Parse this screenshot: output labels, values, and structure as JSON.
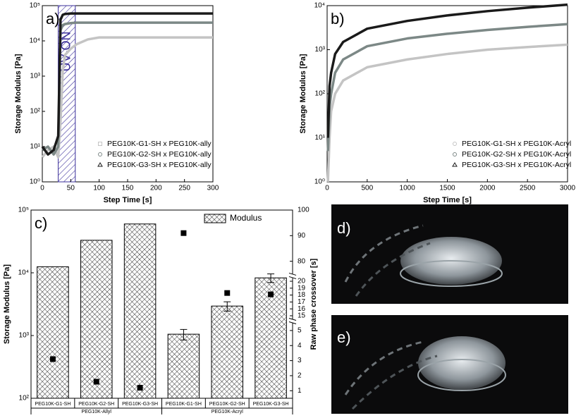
{
  "chart_data": [
    {
      "type": "line",
      "panel_label": "a)",
      "xlabel": "Step Time [s]",
      "ylabel": "Storage Modulus [Pa]",
      "x": [
        0,
        10,
        20,
        28,
        32,
        36,
        40,
        50,
        60,
        80,
        100,
        150,
        200,
        250,
        300
      ],
      "xlim": [
        0,
        300
      ],
      "xticks": [
        0,
        50,
        100,
        150,
        200,
        250,
        300
      ],
      "ylim": [
        1,
        100000
      ],
      "yscale": "log",
      "yticks": [
        {
          "value": 1,
          "label": "10⁰"
        },
        {
          "value": 10,
          "label": "10¹"
        },
        {
          "value": 100,
          "label": "10²"
        },
        {
          "value": 1000,
          "label": "10³"
        },
        {
          "value": 10000,
          "label": "10⁴"
        },
        {
          "value": 100000,
          "label": "10⁵"
        }
      ],
      "legend": "lower right",
      "shade": {
        "x": [
          28,
          58
        ],
        "label": "UV-ON",
        "color": "#3b2f9a"
      },
      "series": [
        {
          "name": "PEG10K-G1-SH x PEG10K-ally",
          "color": "#c4c4c4",
          "marker": "square",
          "values": [
            5,
            8,
            10,
            5,
            50,
            1500,
            4000,
            6000,
            8000,
            11000,
            12500,
            12500,
            12500,
            12500,
            12500
          ]
        },
        {
          "name": "PEG10K-G2-SH x PEG10K-ally",
          "color": "#7c8886",
          "marker": "circle",
          "values": [
            8,
            10,
            6,
            10,
            20000,
            28000,
            30000,
            32000,
            33000,
            33000,
            33000,
            33000,
            33000,
            33000,
            33000
          ]
        },
        {
          "name": "PEG10K-G3-SH x PEG10K-ally",
          "color": "#1a1a1a",
          "marker": "triangle",
          "values": [
            10,
            6,
            8,
            20,
            40000,
            55000,
            58000,
            60000,
            60000,
            60000,
            60000,
            60000,
            60000,
            60000,
            60000
          ]
        }
      ]
    },
    {
      "type": "line",
      "panel_label": "b)",
      "xlabel": "Step Time [s]",
      "ylabel": "Storage Modulus [Pa]",
      "x": [
        10,
        30,
        50,
        100,
        200,
        500,
        1000,
        1500,
        2000,
        2500,
        3000
      ],
      "xlim": [
        0,
        3000
      ],
      "xticks": [
        0,
        500,
        1000,
        1500,
        2000,
        2500,
        3000
      ],
      "ylim": [
        1,
        10000
      ],
      "yscale": "log",
      "yticks": [
        {
          "value": 1,
          "label": "10⁰"
        },
        {
          "value": 10,
          "label": "10¹"
        },
        {
          "value": 100,
          "label": "10²"
        },
        {
          "value": 1000,
          "label": "10³"
        },
        {
          "value": 10000,
          "label": "10⁴"
        }
      ],
      "legend": "lower right",
      "series": [
        {
          "name": "PEG10K-G1-SH x PEG10K-Acryl",
          "color": "#c4c4c4",
          "marker": "circle",
          "values": [
            1,
            10,
            40,
            100,
            200,
            400,
            600,
            800,
            1000,
            1150,
            1300
          ]
        },
        {
          "name": "PEG10K-G2-SH x PEG10K-Acryl",
          "color": "#7c8886",
          "marker": "circle",
          "values": [
            5,
            50,
            100,
            300,
            600,
            1200,
            1800,
            2300,
            2800,
            3300,
            3800
          ]
        },
        {
          "name": "PEG10K-G3-SH x PEG10K-Acryl",
          "color": "#1a1a1a",
          "marker": "triangle",
          "values": [
            10,
            150,
            300,
            800,
            1500,
            3000,
            4500,
            6000,
            7500,
            9000,
            10500
          ]
        }
      ]
    },
    {
      "type": "bar",
      "panel_label": "c)",
      "ylabel": "Storage Modulus [Pa]",
      "y2label": "Raw phase crossover [s]",
      "categories": [
        "PEG10K-G1-SH",
        "PEG10K-G2-SH",
        "PEG10K-G3-SH",
        "PEG10K-G1-SH",
        "PEG10K-G2-SH",
        "PEG10K-G3-SH"
      ],
      "groups": [
        "PEG10K-Allyl",
        "PEG10K-Acryl"
      ],
      "ylim": [
        100,
        100000
      ],
      "yscale": "log",
      "yticks": [
        {
          "value": 100,
          "label": "10²"
        },
        {
          "value": 1000,
          "label": "10³"
        },
        {
          "value": 10000,
          "label": "10⁴"
        },
        {
          "value": 100000,
          "label": "10⁵"
        }
      ],
      "y2_segments": [
        [
          0.5,
          5.5
        ],
        [
          14.5,
          20.5
        ],
        [
          75,
          100
        ]
      ],
      "y2ticks": [
        1,
        2,
        3,
        4,
        5,
        15,
        16,
        17,
        18,
        19,
        20,
        80,
        90,
        100
      ],
      "legend": "upper right",
      "series": [
        {
          "name": "Modulus",
          "color": "#000000",
          "pattern": "crosshatch",
          "values": [
            12500,
            33000,
            60000,
            1050,
            2950,
            8300
          ],
          "errors": [
            null,
            null,
            null,
            200,
            500,
            1300
          ]
        }
      ],
      "y2_values": [
        3.1,
        1.6,
        1.2,
        91,
        18.3,
        18.1
      ],
      "y2_color": "#000000"
    }
  ],
  "photos": [
    {
      "label": "d)"
    },
    {
      "label": "e)"
    }
  ]
}
